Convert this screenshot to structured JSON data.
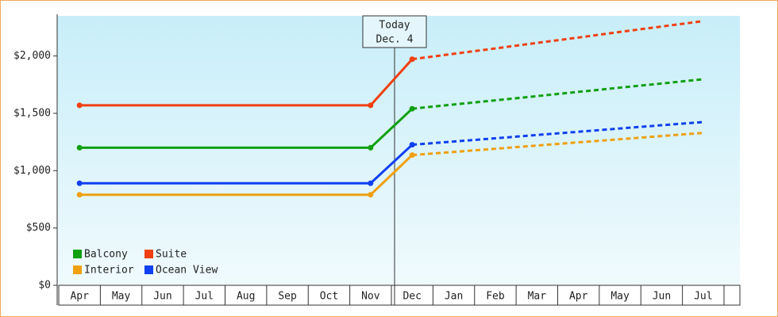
{
  "chart_data": {
    "type": "line",
    "categories": [
      "Apr",
      "May",
      "Jun",
      "Jul",
      "Aug",
      "Sep",
      "Oct",
      "Nov",
      "Dec",
      "Jan",
      "Feb",
      "Mar",
      "Apr",
      "May",
      "Jun",
      "Jul"
    ],
    "series": [
      {
        "name": "Balcony",
        "color": "#10a010",
        "values": [
          1200,
          1200,
          1200,
          1200,
          1200,
          1200,
          1200,
          1200,
          1540,
          1577,
          1613,
          1650,
          1687,
          1724,
          1760,
          1797
        ]
      },
      {
        "name": "Suite",
        "color": "#f04010",
        "values": [
          1570,
          1570,
          1570,
          1570,
          1570,
          1570,
          1570,
          1570,
          1972,
          2019,
          2066,
          2114,
          2161,
          2210,
          2257,
          2304
        ]
      },
      {
        "name": "Interior",
        "color": "#f0a010",
        "values": [
          790,
          790,
          790,
          790,
          790,
          790,
          790,
          790,
          1136,
          1163,
          1191,
          1219,
          1247,
          1274,
          1302,
          1329
        ]
      },
      {
        "name": "Ocean View",
        "color": "#1040f0",
        "values": [
          890,
          890,
          890,
          890,
          890,
          890,
          890,
          890,
          1226,
          1254,
          1282,
          1311,
          1339,
          1368,
          1396,
          1424
        ]
      }
    ],
    "ylim": [
      0,
      2350
    ],
    "yticks": [
      {
        "value": 0,
        "label": "$0"
      },
      {
        "value": 500,
        "label": "$500"
      },
      {
        "value": 1000,
        "label": "$1,000"
      },
      {
        "value": 1500,
        "label": "$1,500"
      },
      {
        "value": 2000,
        "label": "$2,000"
      }
    ],
    "annotation": [
      "Today",
      "Dec. 4"
    ],
    "legend_position": "lower left"
  }
}
